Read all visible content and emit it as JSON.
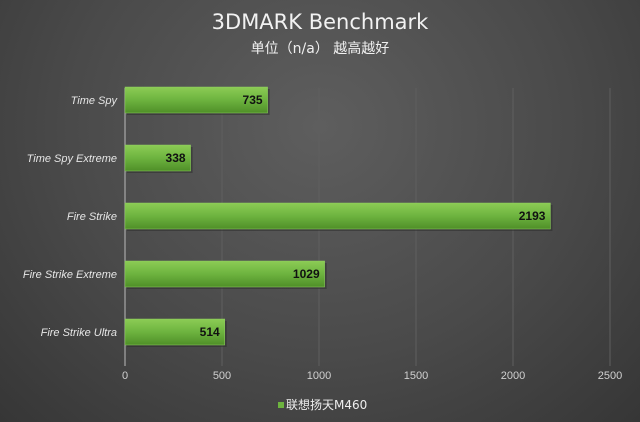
{
  "chart_data": {
    "type": "bar",
    "orientation": "horizontal",
    "title": "3DMARK Benchmark",
    "subtitle": "单位（n/a） 越高越好",
    "categories": [
      "Time Spy",
      "Time Spy Extreme",
      "Fire Strike",
      "Fire Strike Extreme",
      "Fire Strike Ultra"
    ],
    "series": [
      {
        "name": "联想扬天M460",
        "values": [
          735,
          338,
          2193,
          1029,
          514
        ],
        "color": "#6db33f"
      }
    ],
    "xlim": [
      0,
      2500
    ],
    "xticks": [
      0,
      500,
      1000,
      1500,
      2000,
      2500
    ],
    "grid": true,
    "legend": "bottom",
    "data_labels": true
  }
}
